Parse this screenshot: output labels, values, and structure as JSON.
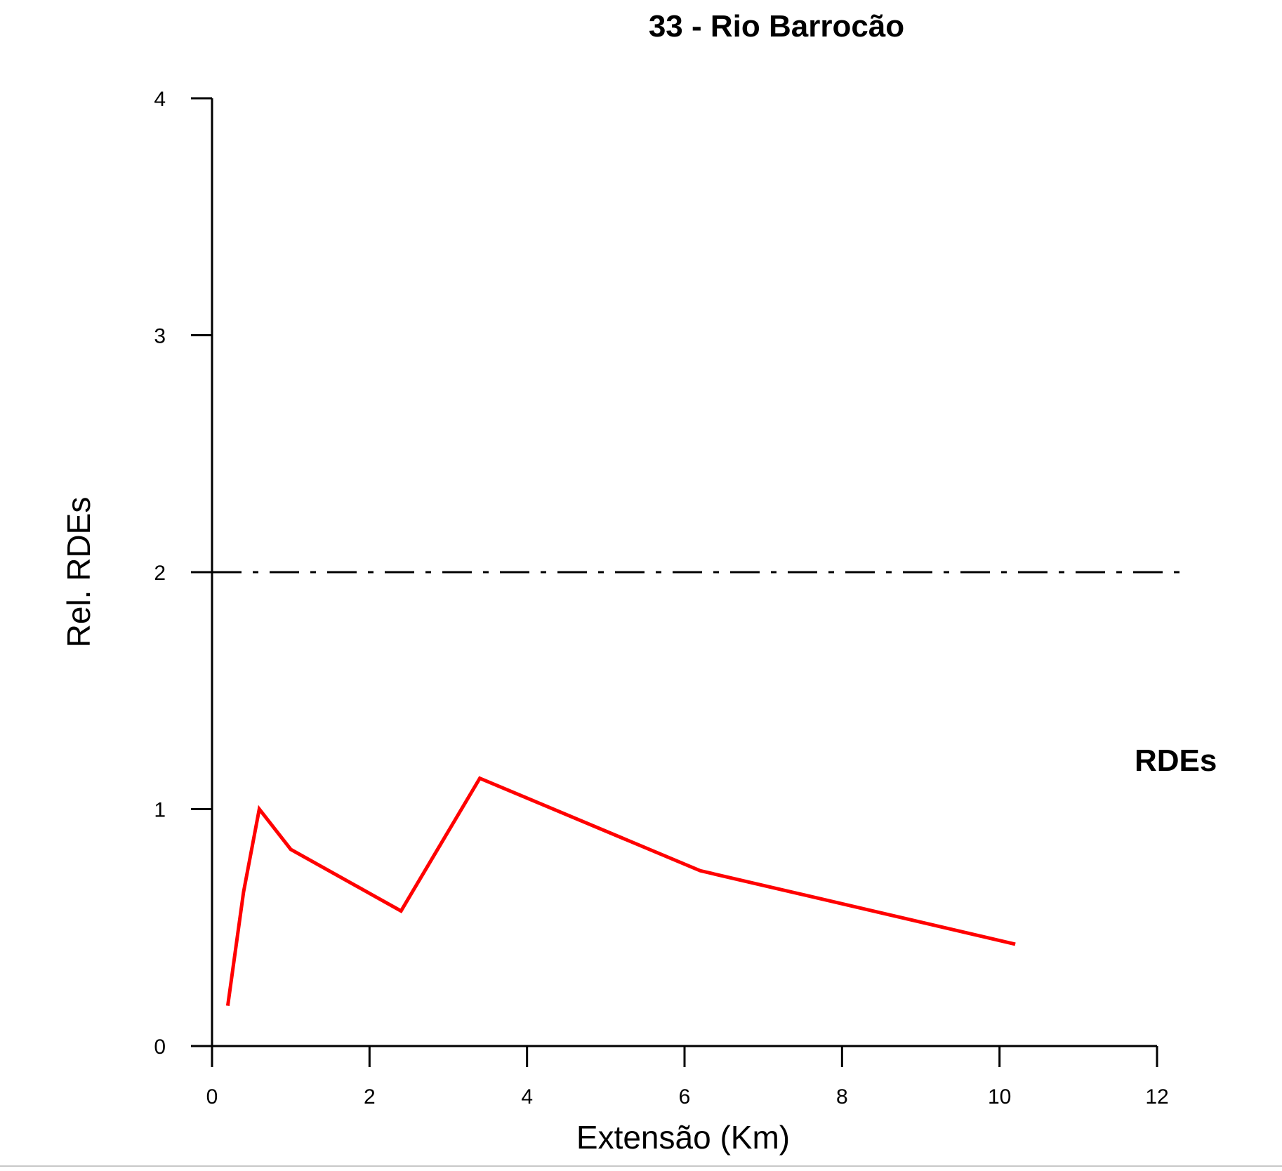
{
  "chart_data": {
    "type": "line",
    "title": "33 - Rio Barrocão",
    "xlabel": "Extensão (Km)",
    "ylabel": "Rel. RDEs",
    "xlim": [
      0,
      12
    ],
    "ylim": [
      0,
      4
    ],
    "xticks": [
      0,
      2,
      4,
      6,
      8,
      10,
      12
    ],
    "yticks": [
      0,
      1,
      2,
      3,
      4
    ],
    "grid": false,
    "series": [
      {
        "name": "RDEs",
        "color": "#ff0000",
        "x": [
          0.2,
          0.4,
          0.6,
          1.0,
          2.4,
          3.4,
          6.2,
          10.2
        ],
        "y": [
          0.17,
          0.65,
          1.0,
          0.83,
          0.57,
          1.13,
          0.74,
          0.43
        ]
      }
    ],
    "reference_lines": [
      {
        "y": 2,
        "style": "dash-dot",
        "color": "#000000"
      }
    ],
    "annotations": [
      {
        "text": "RDEs",
        "x": 12.2,
        "y": 1.2
      }
    ]
  }
}
